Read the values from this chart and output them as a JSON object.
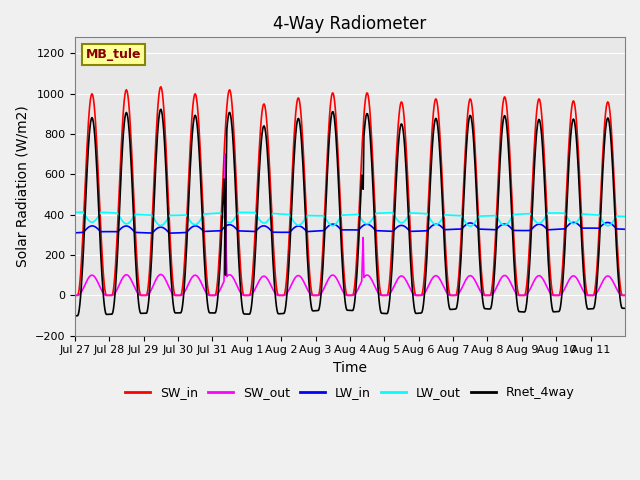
{
  "title": "4-Way Radiometer",
  "xlabel": "Time",
  "ylabel": "Solar Radiation (W/m2)",
  "ylim": [
    -200,
    1280
  ],
  "station_label": "MB_tule",
  "x_tick_labels": [
    "Jul 27",
    "Jul 28",
    "Jul 29",
    "Jul 30",
    "Jul 31",
    "Aug 1",
    "Aug 2",
    "Aug 3",
    "Aug 4",
    "Aug 5",
    "Aug 6",
    "Aug 7",
    "Aug 8",
    "Aug 9",
    "Aug 10",
    "Aug 11"
  ],
  "series": {
    "SW_in": {
      "color": "#ff0000",
      "lw": 1.2
    },
    "SW_out": {
      "color": "#ff00ff",
      "lw": 1.2
    },
    "LW_in": {
      "color": "#0000ff",
      "lw": 1.2
    },
    "LW_out": {
      "color": "#00ffff",
      "lw": 1.2
    },
    "Rnet_4way": {
      "color": "#000000",
      "lw": 1.2
    }
  },
  "plot_bg_color": "#e8e8e8",
  "fig_bg_color": "#f0f0f0",
  "legend_box_color": "#ffff99",
  "legend_box_edge": "#888800",
  "title_fontsize": 12,
  "label_fontsize": 10,
  "tick_fontsize": 8,
  "n_days": 16,
  "SW_in_peaks": [
    1000,
    1020,
    1035,
    1000,
    1020,
    950,
    980,
    1005,
    1005,
    960,
    975,
    975,
    985,
    975,
    965,
    960
  ],
  "SW_out_peaks_special": {
    "4": 700,
    "8": 310
  },
  "LW_in_base": 310,
  "LW_out_base": 405,
  "LW_in_variation": 30,
  "LW_out_variation": 50
}
